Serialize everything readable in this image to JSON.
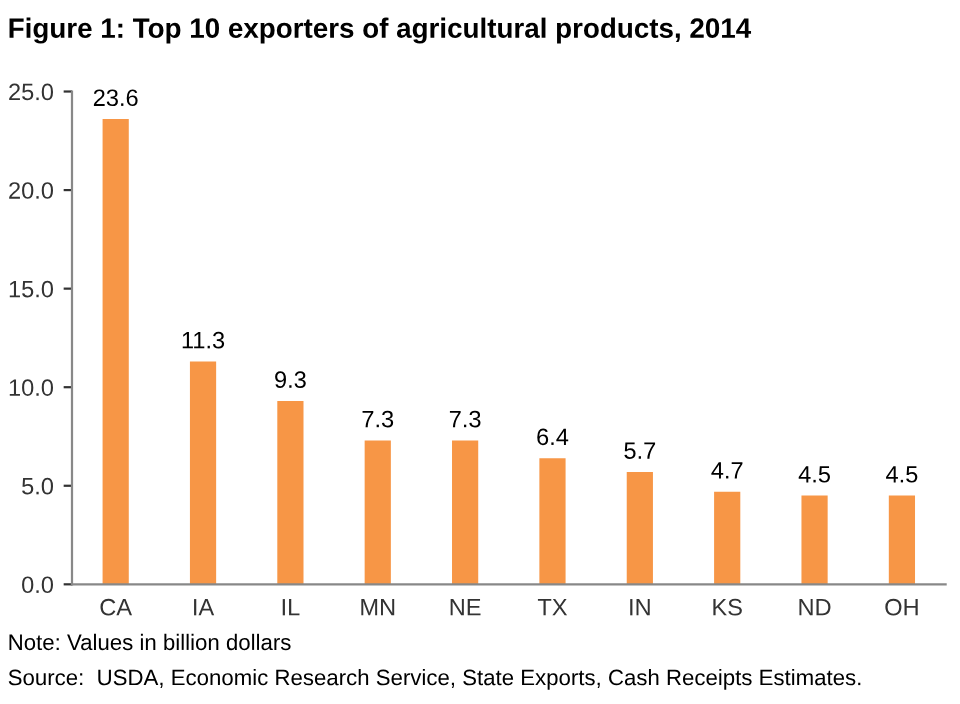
{
  "chart_data": {
    "type": "bar",
    "title": "Figure 1: Top 10 exporters of agricultural products, 2014",
    "categories": [
      "CA",
      "IA",
      "IL",
      "MN",
      "NE",
      "TX",
      "IN",
      "KS",
      "ND",
      "OH"
    ],
    "values": [
      23.6,
      11.3,
      9.3,
      7.3,
      7.3,
      6.4,
      5.7,
      4.7,
      4.5,
      4.5
    ],
    "color": "#f79646",
    "ylim": [
      0,
      25
    ],
    "yticks": [
      {
        "value": 0,
        "label": "0.0"
      },
      {
        "value": 5,
        "label": "5.0"
      },
      {
        "value": 10,
        "label": "10.0"
      },
      {
        "value": 15,
        "label": "15.0"
      },
      {
        "value": 20,
        "label": "20.0"
      },
      {
        "value": 25,
        "label": "25.0"
      }
    ],
    "data_labels": true,
    "grid": false,
    "legend": false,
    "annotations": [
      "Note: Values in billion dollars",
      "Source:  USDA, Economic Research Service, State Exports, Cash Receipts Estimates."
    ]
  }
}
